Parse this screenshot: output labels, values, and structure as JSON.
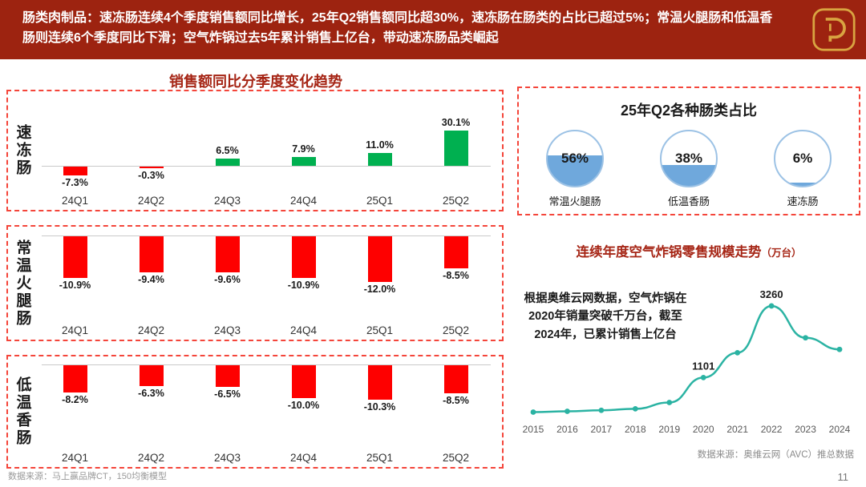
{
  "header": {
    "text": "肠类肉制品：速冻肠连续4个季度销售额同比增长，25年Q2销售额同比超30%，速冻肠在肠类的占比已超过5%；常温火腿肠和低温香肠则连续6个季度同比下滑；空气炸锅过去5年累计销售上亿台，带动速冻肠品类崛起",
    "bg_color": "#9D2310",
    "logo": "brand-emblem"
  },
  "left_section": {
    "title": "销售额同比分季度变化趋势"
  },
  "right_section": {
    "airfryer_title": "连续年度空气炸锅零售规模走势",
    "airfryer_title_unit": "（万台）",
    "airfryer_annotation": "根据奥维云网数据，空气炸锅在2020年销量突破千万台，截至2024年，已累计销售上亿台",
    "airfryer_source": "数据来源：奥维云网（AVC）推总数据"
  },
  "footer": {
    "source": "数据来源：马上赢品牌CT，150均衡模型",
    "page_number": "11"
  },
  "colors": {
    "positive": "#00B050",
    "negative": "#FE0000",
    "line": "#2BB3A3",
    "gauge_fill": "#6FA8DC",
    "gauge_border": "#9CC2E5",
    "accent_red": "#A62616"
  },
  "chart_data": [
    {
      "type": "bar",
      "name": "速冻肠",
      "categories": [
        "24Q1",
        "24Q2",
        "24Q3",
        "24Q4",
        "25Q1",
        "25Q2"
      ],
      "values": [
        -7.3,
        -0.3,
        6.5,
        7.9,
        11.0,
        30.1
      ],
      "value_labels": [
        "-7.3%",
        "-0.3%",
        "6.5%",
        "7.9%",
        "11.0%",
        "30.1%"
      ],
      "ylim": [
        -20,
        60
      ],
      "grid": false
    },
    {
      "type": "bar",
      "name": "常温火腿肠",
      "categories": [
        "24Q1",
        "24Q2",
        "24Q3",
        "24Q4",
        "25Q1",
        "25Q2"
      ],
      "values": [
        -10.9,
        -9.4,
        -9.6,
        -10.9,
        -12.0,
        -8.5
      ],
      "value_labels": [
        "-10.9%",
        "-9.4%",
        "-9.6%",
        "-10.9%",
        "-12.0%",
        "-8.5%"
      ],
      "ylim": [
        -20,
        1
      ],
      "grid": false
    },
    {
      "type": "bar",
      "name": "低温香肠",
      "categories": [
        "24Q1",
        "24Q2",
        "24Q3",
        "24Q4",
        "25Q1",
        "25Q2"
      ],
      "values": [
        -8.2,
        -6.3,
        -6.5,
        -10.0,
        -10.3,
        -8.5
      ],
      "value_labels": [
        "-8.2%",
        "-6.3%",
        "-6.5%",
        "-10.0%",
        "-10.3%",
        "-8.5%"
      ],
      "ylim": [
        -22,
        1
      ],
      "grid": false
    },
    {
      "type": "pie",
      "title": "25年Q2各种肠类占比",
      "items": [
        {
          "label": "常温火腿肠",
          "value": 56,
          "text": "56%"
        },
        {
          "label": "低温香肠",
          "value": 38,
          "text": "38%"
        },
        {
          "label": "速冻肠",
          "value": 6,
          "text": "6%"
        }
      ]
    },
    {
      "type": "line",
      "title": "连续年度空气炸锅零售规模走势（万台）",
      "x": [
        "2015",
        "2016",
        "2017",
        "2018",
        "2019",
        "2020",
        "2021",
        "2022",
        "2023",
        "2024"
      ],
      "values": [
        60,
        85,
        115,
        160,
        350,
        1101,
        1850,
        3260,
        2300,
        1950
      ],
      "annotations": [
        {
          "x": "2020",
          "text": "1101"
        },
        {
          "x": "2022",
          "text": "3260"
        }
      ],
      "ylim": [
        0,
        3500
      ],
      "legend": false,
      "grid": false
    }
  ]
}
